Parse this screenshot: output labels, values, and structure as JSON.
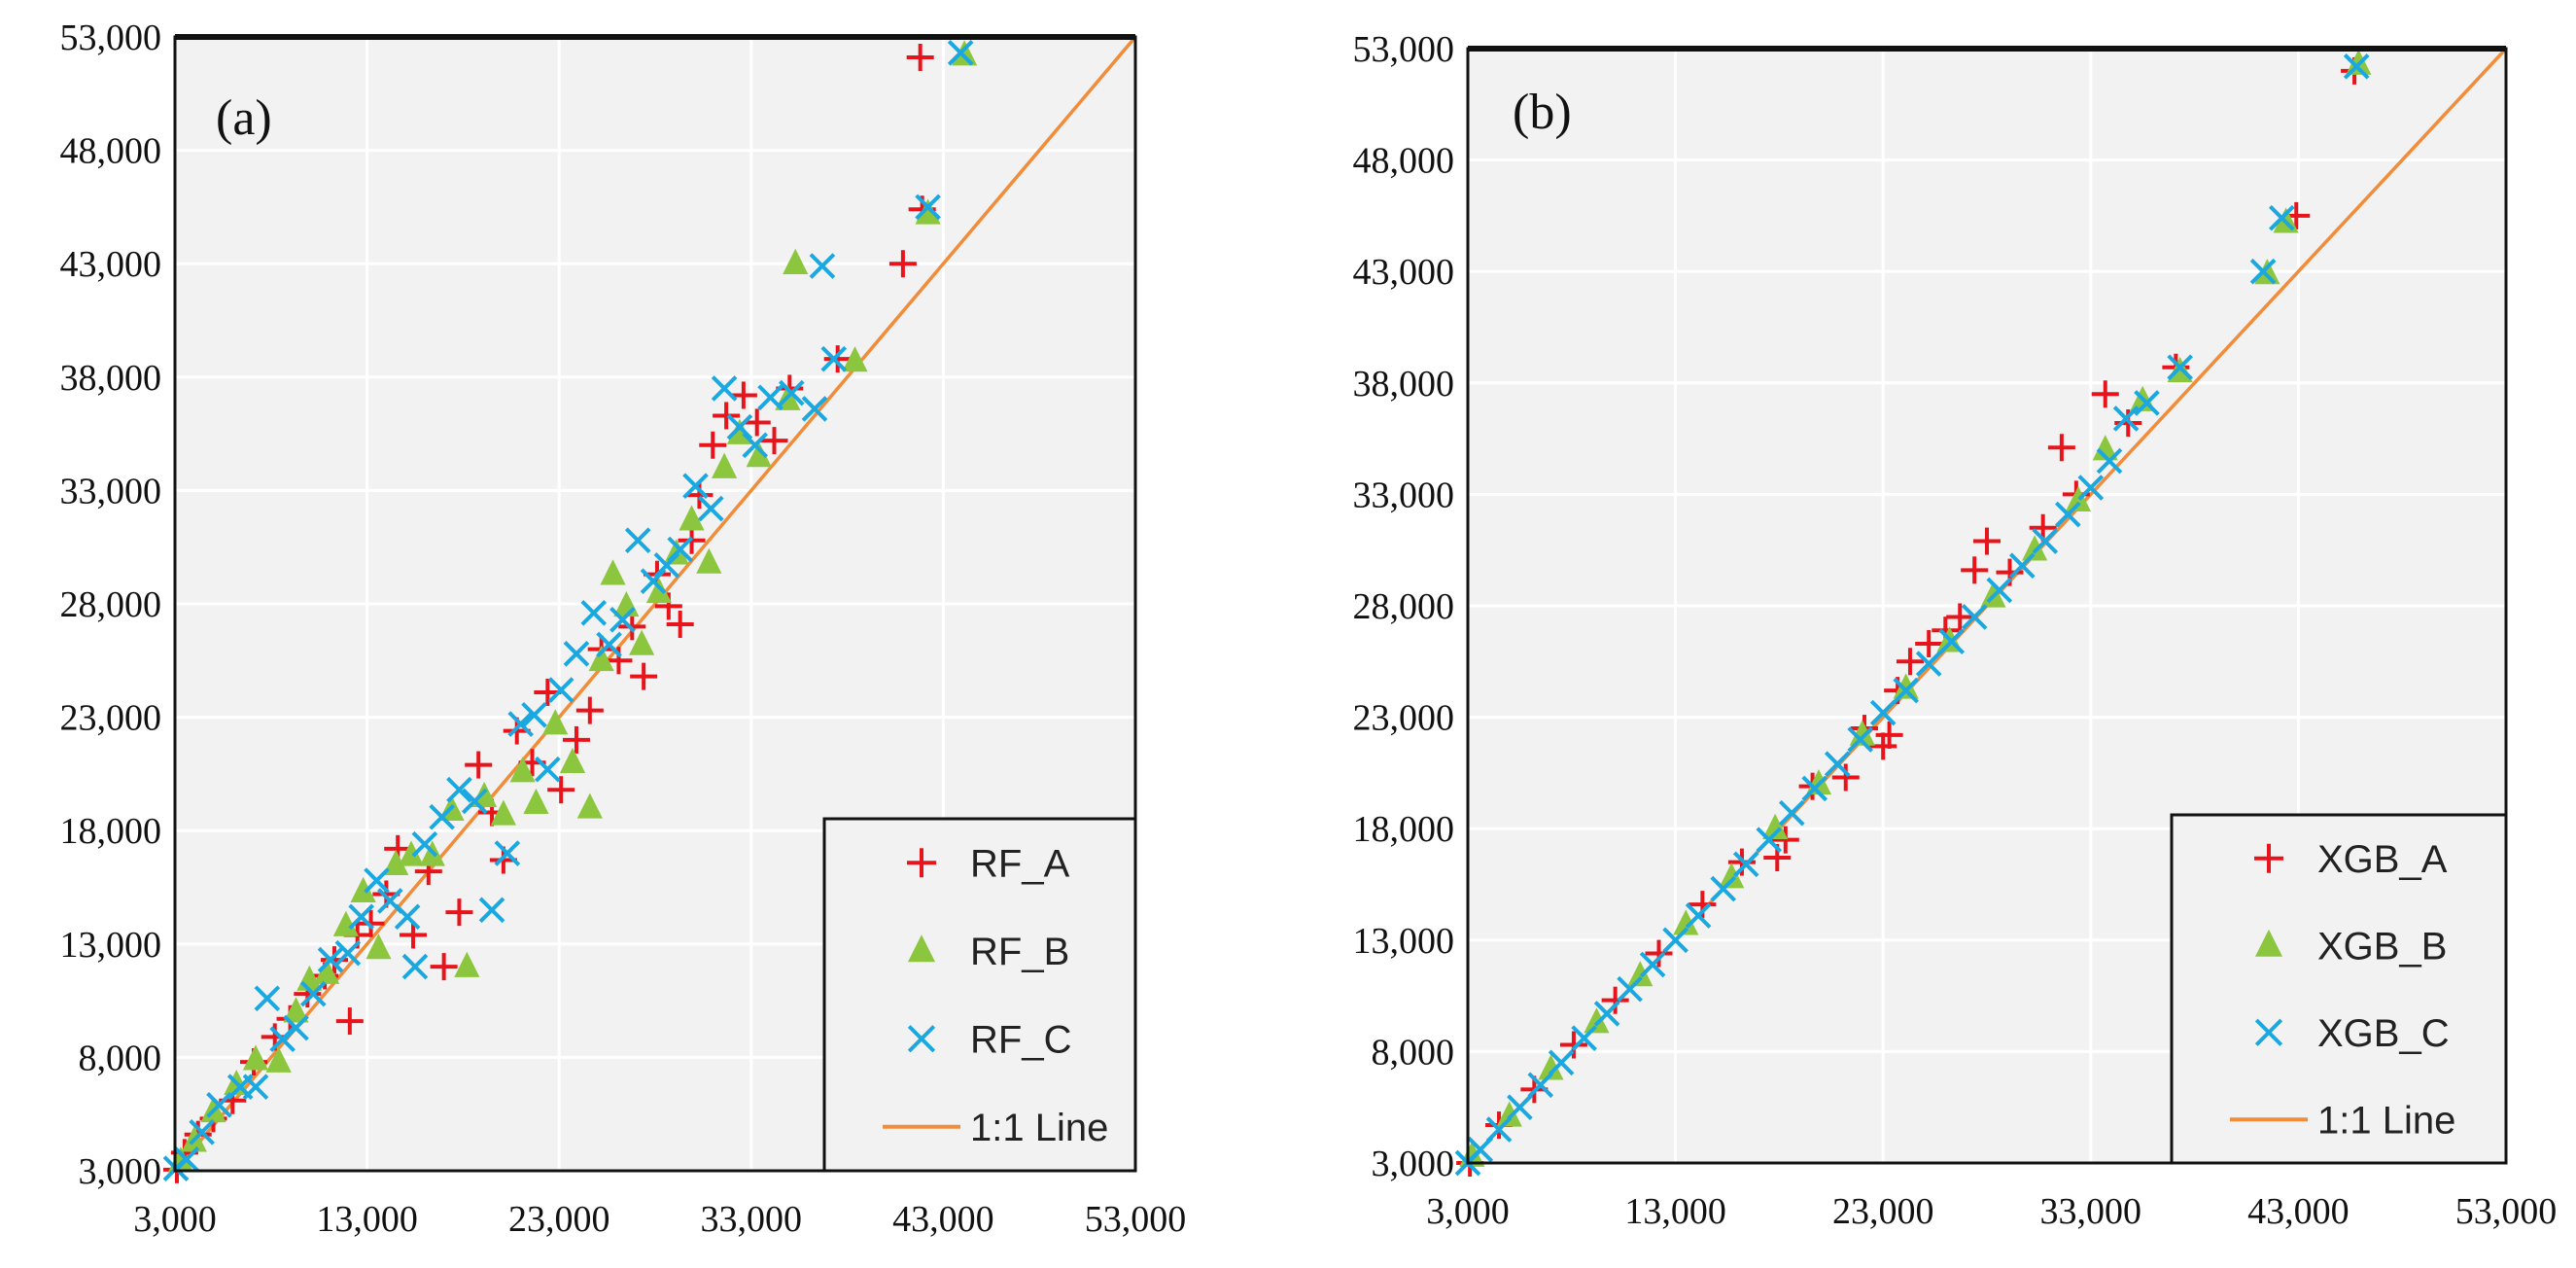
{
  "colors": {
    "plot_bg": "#f2f2f2",
    "grid": "#ffffff",
    "frame": "#111111",
    "series_A": "#e8141c",
    "series_B": "#8cc63f",
    "series_C": "#1ba8e0",
    "line_1to1": "#f08c3a"
  },
  "chart_data": [
    {
      "type": "scatter",
      "panel": "(a)",
      "title": "",
      "xlabel": "",
      "ylabel": "",
      "xlim": [
        3000,
        53000
      ],
      "ylim": [
        3000,
        53000
      ],
      "x_ticks": [
        "3,000",
        "13,000",
        "23,000",
        "33,000",
        "43,000",
        "53,000"
      ],
      "y_ticks": [
        "3,000",
        "8,000",
        "13,000",
        "18,000",
        "23,000",
        "28,000",
        "33,000",
        "38,000",
        "43,000",
        "48,000",
        "53,000"
      ],
      "legend_position": "bottom-right",
      "series": [
        {
          "name": "RF_A",
          "marker": "plus",
          "points": [
            [
              3100,
              3050
            ],
            [
              3500,
              3800
            ],
            [
              4200,
              4600
            ],
            [
              5000,
              5300
            ],
            [
              6000,
              6100
            ],
            [
              7100,
              7800
            ],
            [
              8200,
              8900
            ],
            [
              9000,
              9700
            ],
            [
              9900,
              10800
            ],
            [
              10800,
              11600
            ],
            [
              11300,
              12300
            ],
            [
              12100,
              9600
            ],
            [
              12500,
              13400
            ],
            [
              13200,
              13900
            ],
            [
              14000,
              15200
            ],
            [
              14600,
              17200
            ],
            [
              15400,
              13400
            ],
            [
              16200,
              16200
            ],
            [
              17000,
              12000
            ],
            [
              17800,
              14400
            ],
            [
              18800,
              20900
            ],
            [
              19500,
              18800
            ],
            [
              20100,
              16700
            ],
            [
              20800,
              22400
            ],
            [
              21600,
              21000
            ],
            [
              22400,
              24100
            ],
            [
              23100,
              19800
            ],
            [
              23900,
              22000
            ],
            [
              24600,
              23300
            ],
            [
              25200,
              26000
            ],
            [
              26100,
              25500
            ],
            [
              26800,
              27000
            ],
            [
              27400,
              24800
            ],
            [
              28100,
              29300
            ],
            [
              28700,
              27900
            ],
            [
              29300,
              27100
            ],
            [
              29900,
              30800
            ],
            [
              30300,
              32800
            ],
            [
              31000,
              35000
            ],
            [
              31700,
              36300
            ],
            [
              32600,
              37200
            ],
            [
              33300,
              36000
            ],
            [
              34200,
              35200
            ],
            [
              35000,
              37500
            ],
            [
              37500,
              38800
            ],
            [
              40900,
              43000
            ],
            [
              41800,
              52100
            ],
            [
              41900,
              45400
            ]
          ]
        },
        {
          "name": "RF_B",
          "marker": "triangle",
          "points": [
            [
              3300,
              3400
            ],
            [
              4000,
              4300
            ],
            [
              5000,
              5600
            ],
            [
              6200,
              6800
            ],
            [
              7200,
              7900
            ],
            [
              8400,
              7800
            ],
            [
              9300,
              10000
            ],
            [
              10000,
              11400
            ],
            [
              10900,
              11700
            ],
            [
              11900,
              13800
            ],
            [
              12800,
              15300
            ],
            [
              13600,
              12800
            ],
            [
              14500,
              16500
            ],
            [
              15300,
              16900
            ],
            [
              16400,
              16900
            ],
            [
              17400,
              18900
            ],
            [
              18200,
              12000
            ],
            [
              19100,
              19500
            ],
            [
              20100,
              18700
            ],
            [
              21100,
              20600
            ],
            [
              21800,
              19200
            ],
            [
              22800,
              22700
            ],
            [
              23700,
              21000
            ],
            [
              24600,
              19000
            ],
            [
              25200,
              25500
            ],
            [
              25800,
              29300
            ],
            [
              26500,
              27900
            ],
            [
              27300,
              26200
            ],
            [
              28200,
              28500
            ],
            [
              29100,
              30200
            ],
            [
              29900,
              31700
            ],
            [
              30800,
              29800
            ],
            [
              31600,
              34000
            ],
            [
              32400,
              35500
            ],
            [
              33400,
              34500
            ],
            [
              34900,
              37000
            ],
            [
              35300,
              43000
            ],
            [
              38400,
              38700
            ],
            [
              42200,
              45200
            ],
            [
              44100,
              52200
            ]
          ]
        },
        {
          "name": "RF_C",
          "marker": "x",
          "points": [
            [
              3050,
              3100
            ],
            [
              3600,
              3500
            ],
            [
              4400,
              4700
            ],
            [
              5300,
              5900
            ],
            [
              6400,
              6700
            ],
            [
              7200,
              6700
            ],
            [
              7800,
              10600
            ],
            [
              8600,
              8800
            ],
            [
              9300,
              9300
            ],
            [
              10200,
              10800
            ],
            [
              11100,
              12300
            ],
            [
              12000,
              12600
            ],
            [
              12700,
              14200
            ],
            [
              13500,
              15800
            ],
            [
              14200,
              14900
            ],
            [
              15100,
              14200
            ],
            [
              15500,
              12000
            ],
            [
              16000,
              17400
            ],
            [
              16900,
              18600
            ],
            [
              17800,
              19800
            ],
            [
              18600,
              19300
            ],
            [
              19500,
              14500
            ],
            [
              20300,
              17000
            ],
            [
              21000,
              22700
            ],
            [
              21700,
              23100
            ],
            [
              22400,
              20700
            ],
            [
              23100,
              24200
            ],
            [
              23900,
              25800
            ],
            [
              24800,
              27600
            ],
            [
              25600,
              26200
            ],
            [
              26300,
              27300
            ],
            [
              27100,
              30800
            ],
            [
              27900,
              29000
            ],
            [
              28600,
              29700
            ],
            [
              29300,
              30400
            ],
            [
              30100,
              33200
            ],
            [
              30900,
              32200
            ],
            [
              31600,
              37500
            ],
            [
              32400,
              35800
            ],
            [
              33200,
              35000
            ],
            [
              34000,
              37100
            ],
            [
              35100,
              37300
            ],
            [
              36300,
              36600
            ],
            [
              36700,
              42900
            ],
            [
              37300,
              38800
            ],
            [
              42200,
              45500
            ],
            [
              43900,
              52300
            ]
          ]
        },
        {
          "name": "1:1 Line",
          "type": "line",
          "x": [
            3000,
            53000
          ],
          "y": [
            3000,
            53000
          ]
        }
      ]
    },
    {
      "type": "scatter",
      "panel": "(b)",
      "title": "",
      "xlabel": "",
      "ylabel": "",
      "xlim": [
        3000,
        53000
      ],
      "ylim": [
        3000,
        53000
      ],
      "x_ticks": [
        "3,000",
        "13,000",
        "23,000",
        "33,000",
        "43,000",
        "53,000"
      ],
      "y_ticks": [
        "3,000",
        "8,000",
        "13,000",
        "18,000",
        "23,000",
        "28,000",
        "33,000",
        "38,000",
        "43,000",
        "48,000",
        "53,000"
      ],
      "legend_position": "bottom-right",
      "series": [
        {
          "name": "XGB_A",
          "marker": "plus",
          "points": [
            [
              3100,
              3000
            ],
            [
              4500,
              4700
            ],
            [
              6200,
              6300
            ],
            [
              8100,
              8300
            ],
            [
              10100,
              10300
            ],
            [
              12200,
              12400
            ],
            [
              14300,
              14600
            ],
            [
              16200,
              16500
            ],
            [
              17900,
              16700
            ],
            [
              18300,
              17500
            ],
            [
              19600,
              19900
            ],
            [
              21200,
              20300
            ],
            [
              22100,
              22500
            ],
            [
              23000,
              21700
            ],
            [
              23300,
              22200
            ],
            [
              23700,
              24200
            ],
            [
              24300,
              25500
            ],
            [
              25200,
              26300
            ],
            [
              26000,
              26900
            ],
            [
              26700,
              27500
            ],
            [
              27400,
              29600
            ],
            [
              28000,
              30900
            ],
            [
              29100,
              29500
            ],
            [
              30700,
              31500
            ],
            [
              31600,
              35100
            ],
            [
              32300,
              33000
            ],
            [
              33700,
              37500
            ],
            [
              34800,
              36200
            ],
            [
              37100,
              38700
            ],
            [
              42900,
              45500
            ],
            [
              45700,
              52000
            ]
          ]
        },
        {
          "name": "XGB_B",
          "marker": "triangle",
          "points": [
            [
              3200,
              3300
            ],
            [
              5000,
              5100
            ],
            [
              7000,
              7200
            ],
            [
              9200,
              9300
            ],
            [
              11300,
              11400
            ],
            [
              13500,
              13700
            ],
            [
              15700,
              15800
            ],
            [
              17800,
              18000
            ],
            [
              19900,
              20000
            ],
            [
              22000,
              22200
            ],
            [
              24100,
              24300
            ],
            [
              26200,
              26400
            ],
            [
              28300,
              28400
            ],
            [
              30300,
              30500
            ],
            [
              32400,
              32700
            ],
            [
              33700,
              35000
            ],
            [
              35500,
              37200
            ],
            [
              37300,
              38500
            ],
            [
              41500,
              42900
            ],
            [
              42400,
              45200
            ],
            [
              45900,
              52300
            ]
          ]
        },
        {
          "name": "XGB_C",
          "marker": "x",
          "points": [
            [
              3000,
              3000
            ],
            [
              3600,
              3600
            ],
            [
              4500,
              4500
            ],
            [
              5500,
              5500
            ],
            [
              6500,
              6500
            ],
            [
              7500,
              7500
            ],
            [
              8600,
              8600
            ],
            [
              9700,
              9700
            ],
            [
              10800,
              10800
            ],
            [
              11900,
              11900
            ],
            [
              13000,
              13000
            ],
            [
              14100,
              14100
            ],
            [
              15300,
              15300
            ],
            [
              16400,
              16400
            ],
            [
              17500,
              17500
            ],
            [
              18600,
              18700
            ],
            [
              19700,
              19800
            ],
            [
              20800,
              20900
            ],
            [
              21900,
              22000
            ],
            [
              23000,
              23200
            ],
            [
              24100,
              24200
            ],
            [
              25200,
              25400
            ],
            [
              26300,
              26400
            ],
            [
              27400,
              27500
            ],
            [
              28600,
              28700
            ],
            [
              29700,
              29800
            ],
            [
              30800,
              30900
            ],
            [
              31900,
              32100
            ],
            [
              33000,
              33300
            ],
            [
              33900,
              34500
            ],
            [
              34700,
              36400
            ],
            [
              35700,
              37100
            ],
            [
              37300,
              38700
            ],
            [
              41300,
              43000
            ],
            [
              42200,
              45400
            ],
            [
              45800,
              52200
            ]
          ]
        },
        {
          "name": "1:1 Line",
          "type": "line",
          "x": [
            3000,
            53000
          ],
          "y": [
            3000,
            53000
          ]
        }
      ]
    }
  ]
}
